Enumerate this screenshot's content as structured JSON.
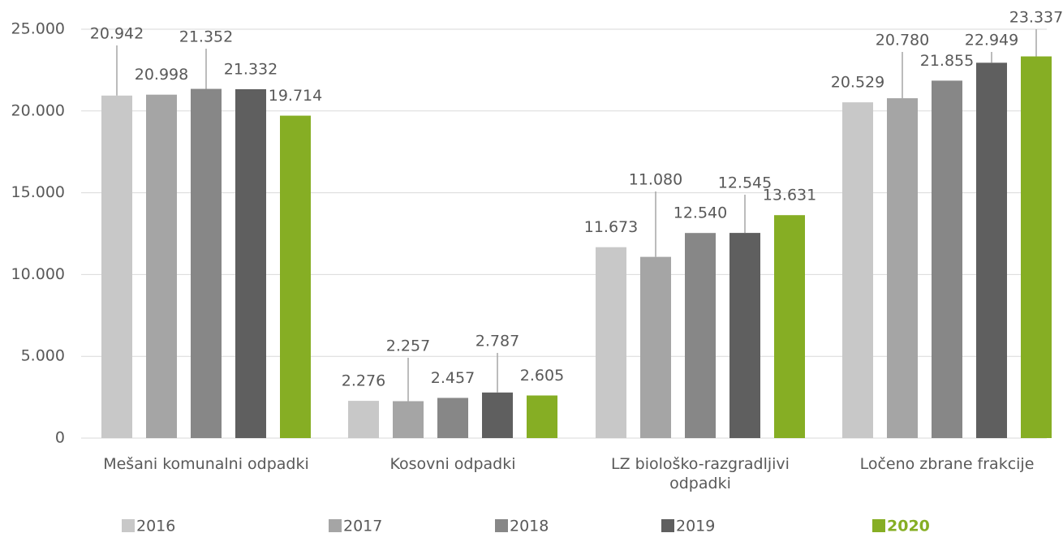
{
  "chart_data": {
    "type": "bar",
    "categories": [
      "Mešani komunalni odpadki",
      "Kosovni odpadki",
      "LZ biološko-razgradljivi odpadki",
      "Ločeno zbrane frakcije"
    ],
    "series": [
      {
        "name": "2016",
        "color": "#c8c8c8",
        "values": [
          20942,
          2276,
          11673,
          20529
        ],
        "value_labels": [
          "20.942",
          "2.276",
          "11.673",
          "20.529"
        ]
      },
      {
        "name": "2017",
        "color": "#a5a5a5",
        "values": [
          20998,
          2257,
          11080,
          20780
        ],
        "value_labels": [
          "20.998",
          "2.257",
          "11.080",
          "20.780"
        ]
      },
      {
        "name": "2018",
        "color": "#878787",
        "values": [
          21352,
          2457,
          12540,
          21855
        ],
        "value_labels": [
          "21.352",
          "2.457",
          "12.540",
          "21.855"
        ]
      },
      {
        "name": "2019",
        "color": "#5f5f5f",
        "values": [
          21332,
          2787,
          12545,
          22949
        ],
        "value_labels": [
          "21.332",
          "2.787",
          "12.545",
          "22.949"
        ]
      },
      {
        "name": "2020",
        "color": "#86ae24",
        "values": [
          19714,
          2605,
          13631,
          23337
        ],
        "value_labels": [
          "19.714",
          "2.605",
          "13.631",
          "23.337"
        ]
      }
    ],
    "ylim": [
      0,
      25000
    ],
    "yticks": [
      0,
      {
        "value": 5000,
        "label": "5.000"
      },
      {
        "value": 10000,
        "label": "10.000"
      },
      {
        "value": 15000,
        "label": "15.000"
      },
      {
        "value": 20000,
        "label": "20.000"
      },
      {
        "value": 25000,
        "label": "25.000"
      }
    ],
    "grid": true,
    "legend": "bottom"
  }
}
